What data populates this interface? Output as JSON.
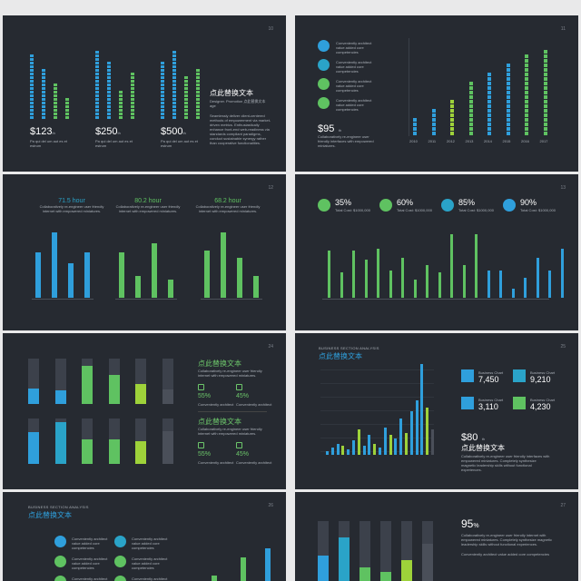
{
  "colors": {
    "bg": "#262a31",
    "page": "#e9e9ea",
    "blue": "#2f9fdc",
    "green": "#5fc261",
    "lime": "#9ed23a",
    "cyan": "#2aa3c8",
    "gray": "#4a4f59"
  },
  "s1": {
    "page": "10",
    "prices": [
      {
        "value": "$123",
        "unit": "th"
      },
      {
        "value": "$250",
        "unit": "th"
      },
      {
        "value": "$500",
        "unit": "th"
      }
    ],
    "price_sub": "Pa qui del um aut es et estrum",
    "title": "点此替换文本",
    "sub": "Designer. Promotion 点此替换文本 age",
    "body": "Seamlessly deliver client-centered methods of empowerment via market-driven metrics. Enthusiastically enhance front-end web-readiness via standards compliant paradigms, conduct sustainable synergy rather than cooperative functionalities."
  },
  "s2": {
    "page": "11",
    "legend": [
      "Conveniently architect value added core competencies",
      "Conveniently architect value added core competencies",
      "Conveniently architect value added core competencies",
      "Conveniently architect value added core competencies"
    ],
    "price": "$95",
    "unit": "th",
    "desc": "Collaboratively re-engineer user friendly interfaces with empowered miniatures.",
    "years": [
      "2010",
      "2011",
      "2012",
      "2013",
      "2014",
      "2015",
      "2016",
      "2017"
    ]
  },
  "s3": {
    "page": "12",
    "stats": [
      {
        "value": "71.5",
        "label": "hour"
      },
      {
        "value": "80.2",
        "label": "hour"
      },
      {
        "value": "68.2",
        "label": "hour"
      }
    ],
    "desc": "Collaboratively re-engineer user friendly internet with empowered miniatures."
  },
  "s4": {
    "page": "13",
    "kpis": [
      {
        "pct": "35%",
        "label": "Total Cost: $1000,000"
      },
      {
        "pct": "60%",
        "label": "Total Cost: $1000,000"
      },
      {
        "pct": "85%",
        "label": "Total Cost: $1000,000"
      },
      {
        "pct": "90%",
        "label": "Total Cost: $1000,000"
      }
    ]
  },
  "s5": {
    "page": "24",
    "title1": "点此替换文本",
    "desc1": "Collaboratively re-engineer user friendly internet with empowered miniatures.",
    "stats1": [
      {
        "pct": "55%",
        "label": "Conveniently architect"
      },
      {
        "pct": "45%",
        "label": "Conveniently architect"
      }
    ],
    "title2": "点此替换文本",
    "desc2": "Collaboratively re-engineer user friendly internet with empowered miniatures.",
    "stats2": [
      {
        "pct": "55%",
        "label": "Conveniently architect"
      },
      {
        "pct": "45%",
        "label": "Conveniently architect"
      }
    ]
  },
  "s6": {
    "page": "25",
    "header": "BUSINESS SECTION ANALYSIS",
    "title": "点此替换文本",
    "tiles": [
      {
        "label": "Business Chart",
        "value": "7,450"
      },
      {
        "label": "Business Chart",
        "value": "9,210"
      },
      {
        "label": "Business Chart",
        "value": "3,110"
      },
      {
        "label": "Business Chart",
        "value": "4,230"
      }
    ],
    "price": "$80",
    "unit": "th",
    "cn": "点此替换文本",
    "desc": "Collaboratively re-engineer user friendly interfaces with empowered miniatures. Completely synthesize magnetic leadership skills without functional experiences."
  },
  "s7": {
    "page": "26",
    "header": "BUSINESS SECTION ANALYSIS",
    "title": "点此替换文本",
    "legend": [
      "Conveniently architect value added core competencies",
      "Conveniently architect value added core competencies",
      "Conveniently architect value added core competencies",
      "Conveniently architect value added core competencies",
      "Conveniently architect value added core competencies",
      "Conveniently architect value added core competencies"
    ]
  },
  "s8": {
    "page": "27",
    "pct": "95",
    "pct_unit": "%",
    "desc": "Collaboratively re-engineer user friendly internet with empowered miniatures. Completely synthesize magnetic leadership skills without functional experiences.",
    "foot": "Conveniently architect value added core competencies"
  }
}
